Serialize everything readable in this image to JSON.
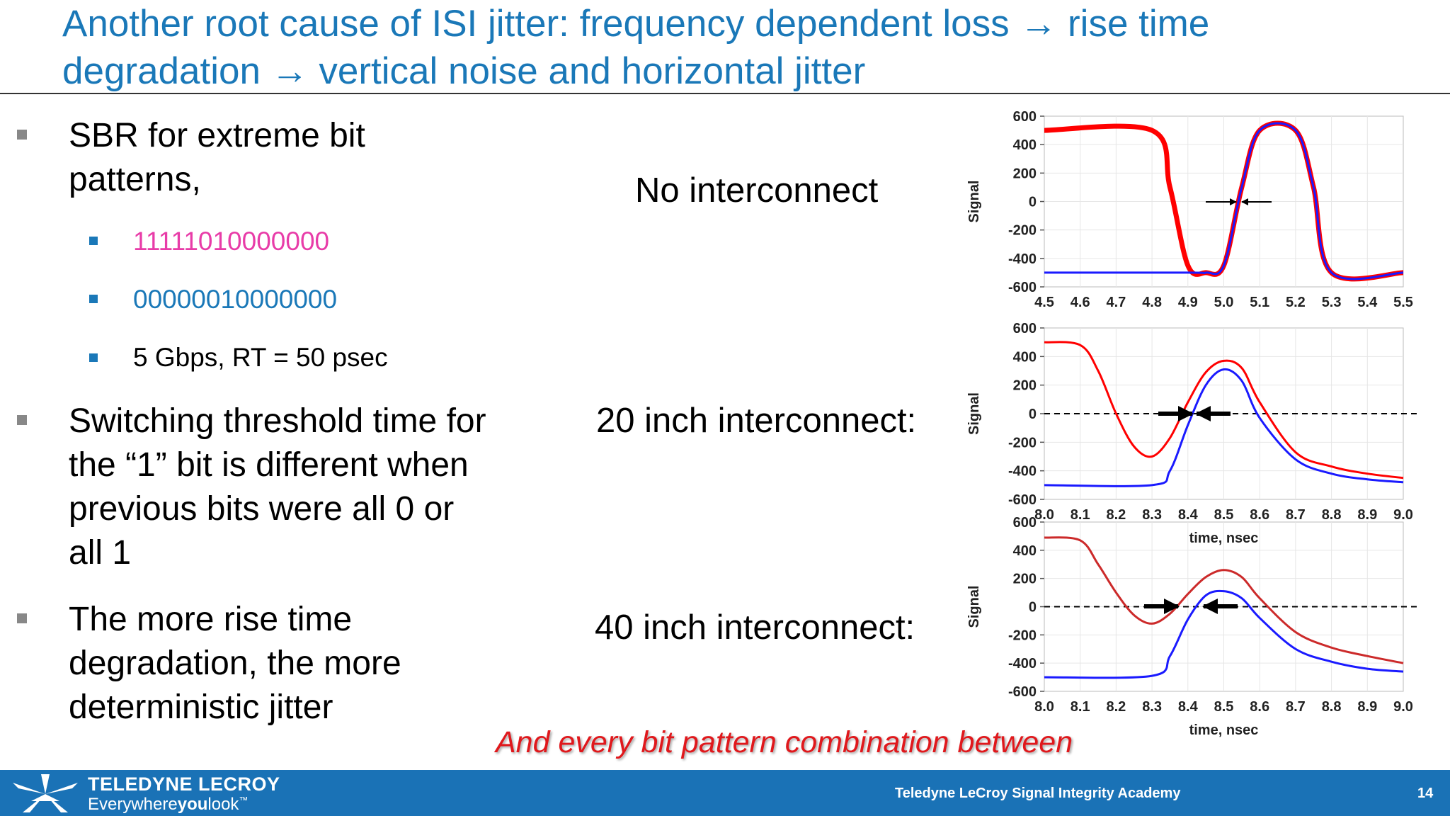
{
  "title": "Another root cause of ISI jitter: frequency dependent loss → rise time degradation → vertical noise and horizontal jitter",
  "bullets": {
    "b1": "SBR for extreme bit patterns,",
    "sub1": "11111010000000",
    "sub2": "00000010000000",
    "sub3": "5 Gbps, RT = 50 psec",
    "b2": "Switching threshold time for the “1” bit is different when previous bits were all 0 or all 1",
    "b3": "The more rise time degradation, the more deterministic jitter"
  },
  "labels": {
    "no": "No interconnect",
    "in20": "20 inch interconnect:",
    "in40": "40 inch interconnect:"
  },
  "footnote": "And every bit pattern combination between",
  "footer": {
    "logo": "TELEDYNE LECROY",
    "tagline_a": "Everywhere",
    "tagline_b": "you",
    "tagline_c": "look",
    "tm": "™",
    "center": "Teledyne LeCroy Signal Integrity Academy",
    "page": "14"
  },
  "colors": {
    "accent": "#1a78b8",
    "pink": "#e83ca8",
    "red_series": "#ff0000",
    "blue_series": "#1a1aff",
    "footnote": "#e0181c",
    "footer": "#1a72b6"
  },
  "chart_data": [
    {
      "type": "line",
      "ylabel": "Signal",
      "xlabel": "",
      "xlim": [
        4.5,
        5.5
      ],
      "ylim": [
        -600,
        600
      ],
      "xticks": [
        "4.5",
        "4.6",
        "4.7",
        "4.8",
        "4.9",
        "5.0",
        "5.1",
        "5.2",
        "5.3",
        "5.4",
        "5.5"
      ],
      "yticks": [
        "600",
        "400",
        "200",
        "0",
        "-200",
        "-400",
        "-600"
      ],
      "series": [
        {
          "color": "#ff0000",
          "x": [
            4.5,
            4.8,
            4.85,
            4.9,
            4.95,
            5.0,
            5.05,
            5.1,
            5.2,
            5.25,
            5.3,
            5.5
          ],
          "values": [
            500,
            500,
            100,
            -450,
            -500,
            -450,
            100,
            500,
            500,
            100,
            -500,
            -500
          ]
        },
        {
          "color": "#1a1aff",
          "x": [
            4.5,
            4.9,
            4.95,
            5.0,
            5.05,
            5.1,
            5.2,
            5.25,
            5.3,
            5.5
          ],
          "values": [
            -500,
            -500,
            -500,
            -450,
            100,
            500,
            500,
            100,
            -500,
            -500
          ]
        }
      ]
    },
    {
      "type": "line",
      "ylabel": "Signal",
      "xlabel": "time, nsec",
      "xlim": [
        8.0,
        9.0
      ],
      "ylim": [
        -600,
        600
      ],
      "xticks": [
        "8.0",
        "8.1",
        "8.2",
        "8.3",
        "8.4",
        "8.5",
        "8.6",
        "8.7",
        "8.8",
        "8.9",
        "9.0"
      ],
      "yticks": [
        "600",
        "400",
        "200",
        "0",
        "-200",
        "-400",
        "-600"
      ],
      "series": [
        {
          "color": "#ff0000",
          "x": [
            8.0,
            8.1,
            8.15,
            8.2,
            8.25,
            8.3,
            8.35,
            8.4,
            8.45,
            8.5,
            8.55,
            8.6,
            8.7,
            8.8,
            8.9,
            9.0
          ],
          "values": [
            500,
            480,
            300,
            0,
            -230,
            -300,
            -170,
            80,
            290,
            370,
            320,
            80,
            -270,
            -370,
            -420,
            -450
          ]
        },
        {
          "color": "#1a1aff",
          "x": [
            8.0,
            8.3,
            8.35,
            8.4,
            8.45,
            8.5,
            8.55,
            8.6,
            8.7,
            8.8,
            8.9,
            9.0
          ],
          "values": [
            -500,
            -500,
            -400,
            -80,
            200,
            310,
            230,
            -30,
            -320,
            -420,
            -460,
            -480
          ]
        }
      ]
    },
    {
      "type": "line",
      "ylabel": "Signal",
      "xlabel": "time, nsec",
      "xlim": [
        8.0,
        9.0
      ],
      "ylim": [
        -600,
        600
      ],
      "xticks": [
        "8.0",
        "8.1",
        "8.2",
        "8.3",
        "8.4",
        "8.5",
        "8.6",
        "8.7",
        "8.8",
        "8.9",
        "9.0"
      ],
      "yticks": [
        "600",
        "400",
        "200",
        "0",
        "-200",
        "-400",
        "-600"
      ],
      "series": [
        {
          "color": "#cc2a2a",
          "x": [
            8.0,
            8.1,
            8.15,
            8.2,
            8.25,
            8.3,
            8.35,
            8.4,
            8.45,
            8.5,
            8.55,
            8.6,
            8.7,
            8.8,
            8.9,
            9.0
          ],
          "values": [
            490,
            470,
            300,
            100,
            -60,
            -120,
            -50,
            90,
            210,
            260,
            210,
            60,
            -180,
            -290,
            -350,
            -400
          ]
        },
        {
          "color": "#1a1aff",
          "x": [
            8.0,
            8.3,
            8.35,
            8.4,
            8.45,
            8.5,
            8.55,
            8.6,
            8.7,
            8.8,
            8.9,
            9.0
          ],
          "values": [
            -500,
            -490,
            -350,
            -90,
            80,
            110,
            60,
            -80,
            -300,
            -390,
            -440,
            -460
          ]
        }
      ]
    }
  ]
}
